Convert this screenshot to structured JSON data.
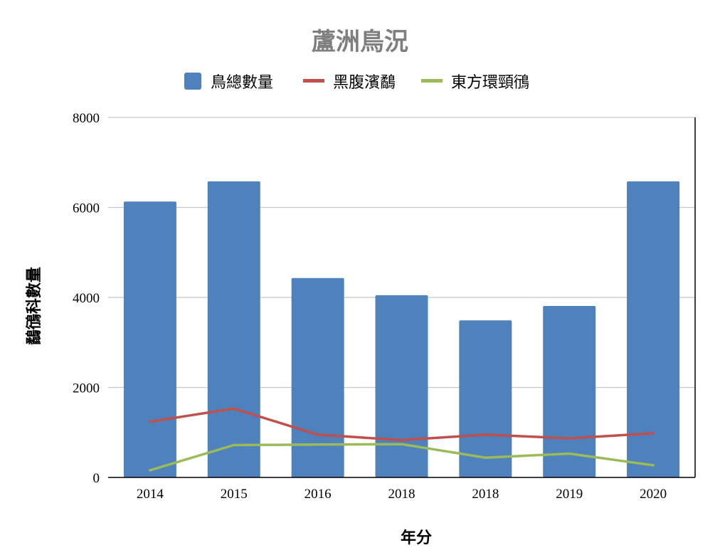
{
  "chart_data": {
    "type": "bar",
    "title": "蘆洲鳥況",
    "xlabel": "年分",
    "ylabel": "鷸鴴科數量",
    "categories": [
      "2014",
      "2015",
      "2016",
      "2018",
      "2018",
      "2019",
      "2020"
    ],
    "ylim": [
      0,
      8000
    ],
    "yticks": [
      0,
      2000,
      4000,
      6000,
      8000
    ],
    "grid": true,
    "legend_position": "top",
    "series": [
      {
        "name": "鳥總數量",
        "type": "bar",
        "color": "#4f81bd",
        "values": [
          6130,
          6580,
          4430,
          4050,
          3490,
          3810,
          6580
        ]
      },
      {
        "name": "黑腹濱鷸",
        "type": "line",
        "color": "#c0504d",
        "values": [
          1240,
          1530,
          950,
          830,
          950,
          870,
          980
        ]
      },
      {
        "name": "東方環頸鴴",
        "type": "line",
        "color": "#9bbb59",
        "values": [
          160,
          720,
          730,
          740,
          440,
          530,
          270
        ]
      }
    ]
  }
}
